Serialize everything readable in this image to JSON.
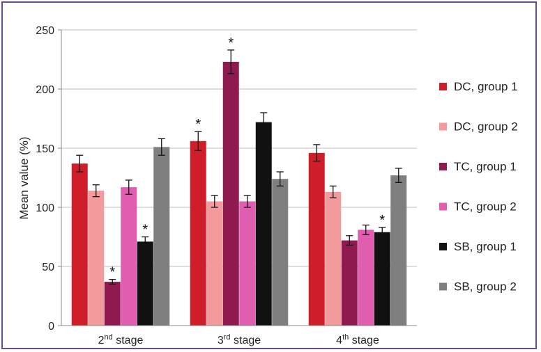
{
  "chart_data": {
    "type": "bar",
    "ylabel": "Mean value (%)",
    "ylim": [
      0,
      250
    ],
    "yticks": [
      0,
      50,
      100,
      150,
      200,
      250
    ],
    "categories": [
      {
        "main": "2",
        "sup": "nd",
        "rest": " stage"
      },
      {
        "main": "3",
        "sup": "rd",
        "rest": " stage"
      },
      {
        "main": "4",
        "sup": "th",
        "rest": " stage"
      }
    ],
    "series": [
      {
        "name": "DC, group 1",
        "color": "#d01d2a",
        "values": [
          137,
          156,
          146
        ],
        "errors": [
          7,
          8,
          7
        ],
        "significant": [
          false,
          true,
          false
        ]
      },
      {
        "name": "DC, group 2",
        "color": "#f29a9c",
        "values": [
          114,
          105,
          113
        ],
        "errors": [
          5,
          5,
          5
        ],
        "significant": [
          false,
          false,
          false
        ]
      },
      {
        "name": "TC, group 1",
        "color": "#8e1a4f",
        "values": [
          37,
          223,
          72
        ],
        "errors": [
          2,
          10,
          4
        ],
        "significant": [
          true,
          true,
          false
        ]
      },
      {
        "name": "TC, group 2",
        "color": "#e05db0",
        "values": [
          117,
          105,
          81
        ],
        "errors": [
          6,
          5,
          4
        ],
        "significant": [
          false,
          false,
          false
        ]
      },
      {
        "name": "SB, group 1",
        "color": "#111111",
        "values": [
          71,
          172,
          79
        ],
        "errors": [
          4,
          8,
          4
        ],
        "significant": [
          true,
          false,
          true
        ]
      },
      {
        "name": "SB, group 2",
        "color": "#7f7f7f",
        "values": [
          151,
          124,
          127
        ],
        "errors": [
          7,
          6,
          6
        ],
        "significant": [
          false,
          false,
          false
        ]
      }
    ],
    "significance_marker": "*",
    "legend_position": "right",
    "grid": true
  }
}
